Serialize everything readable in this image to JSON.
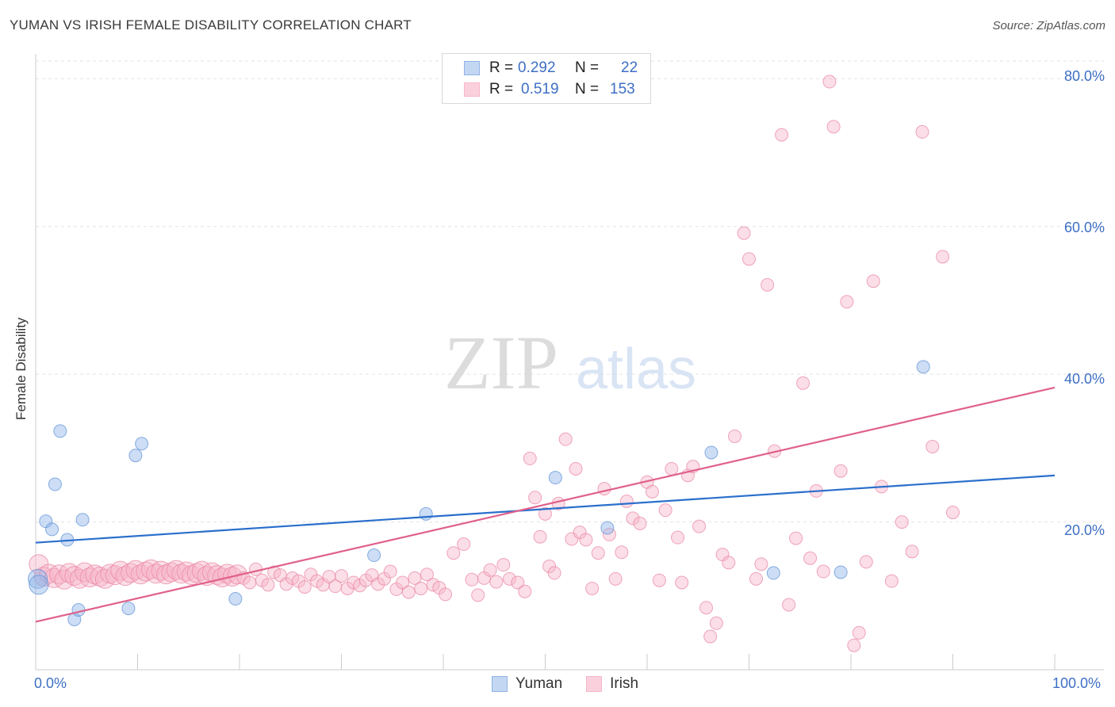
{
  "chart_data": {
    "type": "scatter",
    "title": "YUMAN VS IRISH FEMALE DISABILITY CORRELATION CHART",
    "source": "Source: ZipAtlas.com",
    "xlabel": "",
    "ylabel": "Female Disability",
    "xlim": [
      0,
      100
    ],
    "ylim": [
      0,
      84
    ],
    "x_tick_labels": [
      "0.0%",
      "100.0%"
    ],
    "y_ticks": [
      20,
      40,
      60,
      80
    ],
    "y_tick_labels": [
      "20.0%",
      "40.0%",
      "60.0%",
      "80.0%"
    ],
    "watermark": "ZIPatlas",
    "legend_stats": [
      {
        "r_label": "R =",
        "r_value": "0.292",
        "n_label": "N =",
        "n_value": "22"
      },
      {
        "r_label": "R =",
        "r_value": "0.519",
        "n_label": "N =",
        "n_value": "153"
      }
    ],
    "series": [
      {
        "name": "Yuman",
        "color": "#8fb3e8",
        "stroke": "#5a8ed6",
        "trend": {
          "x0": 0,
          "y0": 17.2,
          "x1": 100,
          "y1": 26.3,
          "color": "#2a6fcc"
        },
        "points": [
          [
            0.2,
            12.3
          ],
          [
            0.3,
            11.5
          ],
          [
            1.0,
            20.1
          ],
          [
            1.6,
            19.0
          ],
          [
            1.9,
            25.1
          ],
          [
            2.4,
            32.3
          ],
          [
            3.1,
            17.6
          ],
          [
            3.8,
            6.8
          ],
          [
            4.2,
            8.1
          ],
          [
            4.6,
            20.3
          ],
          [
            9.1,
            8.3
          ],
          [
            9.8,
            29.0
          ],
          [
            10.4,
            30.6
          ],
          [
            19.6,
            9.6
          ],
          [
            33.2,
            15.5
          ],
          [
            38.3,
            21.1
          ],
          [
            51.0,
            26.0
          ],
          [
            56.1,
            19.2
          ],
          [
            66.3,
            29.4
          ],
          [
            72.4,
            13.1
          ],
          [
            79.0,
            13.2
          ],
          [
            87.1,
            41.0
          ]
        ]
      },
      {
        "name": "Irish",
        "color": "#f7b6c9",
        "stroke": "#e8819f",
        "trend": {
          "x0": 0,
          "y0": 6.5,
          "x1": 100,
          "y1": 38.2,
          "color": "#e0608a"
        },
        "points": [
          [
            0.3,
            14.3
          ],
          [
            0.8,
            12.6
          ],
          [
            1.3,
            13.0
          ],
          [
            1.8,
            12.4
          ],
          [
            2.3,
            12.9
          ],
          [
            2.8,
            12.2
          ],
          [
            3.3,
            13.1
          ],
          [
            3.8,
            12.7
          ],
          [
            4.3,
            12.3
          ],
          [
            4.8,
            13.2
          ],
          [
            5.3,
            12.5
          ],
          [
            5.8,
            12.9
          ],
          [
            6.3,
            12.6
          ],
          [
            6.8,
            12.3
          ],
          [
            7.3,
            13.0
          ],
          [
            7.8,
            12.8
          ],
          [
            8.3,
            13.4
          ],
          [
            8.8,
            12.7
          ],
          [
            9.3,
            13.1
          ],
          [
            9.8,
            13.5
          ],
          [
            10.3,
            12.9
          ],
          [
            10.8,
            13.3
          ],
          [
            11.3,
            13.6
          ],
          [
            11.8,
            13.0
          ],
          [
            12.3,
            13.4
          ],
          [
            12.8,
            12.9
          ],
          [
            13.3,
            13.2
          ],
          [
            13.8,
            13.5
          ],
          [
            14.3,
            13.0
          ],
          [
            14.8,
            13.3
          ],
          [
            15.3,
            12.8
          ],
          [
            15.8,
            13.1
          ],
          [
            16.3,
            13.4
          ],
          [
            16.8,
            12.7
          ],
          [
            17.3,
            13.2
          ],
          [
            17.8,
            12.8
          ],
          [
            18.3,
            12.5
          ],
          [
            18.8,
            13.0
          ],
          [
            19.3,
            12.6
          ],
          [
            19.8,
            12.9
          ],
          [
            20.4,
            12.4
          ],
          [
            21.0,
            11.8
          ],
          [
            21.6,
            13.6
          ],
          [
            22.2,
            12.1
          ],
          [
            22.8,
            11.5
          ],
          [
            23.4,
            13.2
          ],
          [
            24.0,
            12.8
          ],
          [
            24.6,
            11.6
          ],
          [
            25.2,
            12.4
          ],
          [
            25.8,
            12.0
          ],
          [
            26.4,
            11.2
          ],
          [
            27.0,
            12.9
          ],
          [
            27.6,
            12.0
          ],
          [
            28.2,
            11.5
          ],
          [
            28.8,
            12.6
          ],
          [
            29.4,
            11.3
          ],
          [
            30.0,
            12.7
          ],
          [
            30.6,
            11.0
          ],
          [
            31.2,
            11.8
          ],
          [
            31.8,
            11.4
          ],
          [
            32.4,
            12.1
          ],
          [
            33.0,
            12.8
          ],
          [
            33.6,
            11.6
          ],
          [
            34.2,
            12.3
          ],
          [
            34.8,
            13.3
          ],
          [
            35.4,
            10.9
          ],
          [
            36.0,
            11.8
          ],
          [
            36.6,
            10.5
          ],
          [
            37.2,
            12.4
          ],
          [
            37.8,
            11.0
          ],
          [
            38.4,
            12.9
          ],
          [
            39.0,
            11.5
          ],
          [
            39.6,
            11.1
          ],
          [
            40.2,
            10.2
          ],
          [
            41.0,
            15.8
          ],
          [
            42.0,
            17.0
          ],
          [
            42.8,
            12.2
          ],
          [
            43.4,
            10.1
          ],
          [
            44.0,
            12.4
          ],
          [
            44.6,
            13.5
          ],
          [
            45.2,
            11.9
          ],
          [
            45.9,
            14.2
          ],
          [
            46.5,
            12.3
          ],
          [
            47.3,
            11.8
          ],
          [
            48.0,
            10.6
          ],
          [
            48.5,
            28.6
          ],
          [
            49.0,
            23.3
          ],
          [
            49.5,
            18.0
          ],
          [
            50.0,
            21.1
          ],
          [
            50.4,
            14.0
          ],
          [
            50.9,
            13.1
          ],
          [
            51.3,
            22.5
          ],
          [
            52.0,
            31.2
          ],
          [
            52.6,
            17.7
          ],
          [
            53.0,
            27.2
          ],
          [
            53.4,
            18.6
          ],
          [
            54.0,
            17.6
          ],
          [
            54.6,
            11.0
          ],
          [
            55.2,
            15.8
          ],
          [
            55.8,
            24.5
          ],
          [
            56.3,
            18.3
          ],
          [
            56.9,
            12.3
          ],
          [
            57.5,
            15.9
          ],
          [
            58.0,
            22.8
          ],
          [
            58.6,
            20.5
          ],
          [
            59.3,
            19.8
          ],
          [
            60.0,
            25.4
          ],
          [
            60.5,
            24.1
          ],
          [
            61.2,
            12.1
          ],
          [
            61.8,
            21.6
          ],
          [
            62.4,
            27.2
          ],
          [
            63.0,
            17.9
          ],
          [
            63.4,
            11.8
          ],
          [
            64.0,
            26.3
          ],
          [
            64.5,
            27.5
          ],
          [
            65.1,
            19.4
          ],
          [
            65.8,
            8.4
          ],
          [
            66.2,
            4.5
          ],
          [
            66.8,
            6.3
          ],
          [
            67.4,
            15.6
          ],
          [
            68.0,
            14.5
          ],
          [
            68.6,
            31.6
          ],
          [
            69.5,
            59.1
          ],
          [
            70.0,
            55.6
          ],
          [
            70.7,
            12.3
          ],
          [
            71.2,
            14.3
          ],
          [
            71.8,
            52.1
          ],
          [
            72.5,
            29.6
          ],
          [
            73.2,
            72.4
          ],
          [
            73.9,
            8.8
          ],
          [
            74.6,
            17.8
          ],
          [
            75.3,
            38.8
          ],
          [
            76.0,
            15.1
          ],
          [
            76.6,
            24.2
          ],
          [
            77.3,
            13.3
          ],
          [
            77.9,
            79.6
          ],
          [
            78.3,
            73.5
          ],
          [
            79.0,
            26.9
          ],
          [
            79.6,
            49.8
          ],
          [
            80.3,
            3.3
          ],
          [
            80.8,
            5.0
          ],
          [
            81.5,
            14.6
          ],
          [
            82.2,
            52.6
          ],
          [
            83.0,
            24.8
          ],
          [
            84.0,
            12.0
          ],
          [
            85.0,
            20.0
          ],
          [
            86.0,
            16.0
          ],
          [
            87.0,
            72.8
          ],
          [
            88.0,
            30.2
          ],
          [
            89.0,
            55.9
          ],
          [
            90.0,
            21.3
          ]
        ]
      }
    ]
  }
}
